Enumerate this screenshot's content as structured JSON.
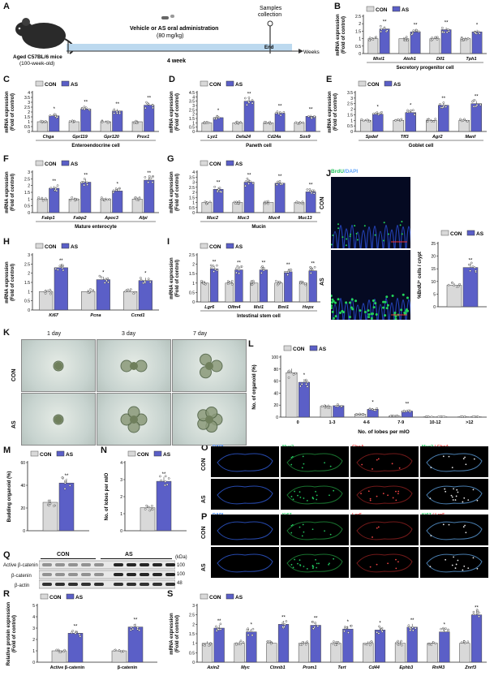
{
  "colors": {
    "con": "#d9d9d9",
    "as": "#5b5fc7",
    "axis": "#222",
    "timeline": "#bcd9ef"
  },
  "legend": {
    "con": "CON",
    "as": "AS"
  },
  "labels": {
    "A": "A",
    "B": "B",
    "C": "C",
    "D": "D",
    "E": "E",
    "F": "F",
    "G": "G",
    "H": "H",
    "I": "I",
    "J": "J",
    "K": "K",
    "L": "L",
    "M": "M",
    "N": "N",
    "O": "O",
    "P": "P",
    "Q": "Q",
    "R": "R",
    "S": "S"
  },
  "panelA": {
    "mouse": "Aged C57BL/6 mice",
    "mouse_age": "(100-week-old)",
    "admin": "Vehicle or AS oral administration",
    "dose": "(80 mg/kg)",
    "samples": "Samples",
    "collection": "collection",
    "end": "End",
    "weeks": "Weeks",
    "duration": "4 week"
  },
  "panelJ": {
    "stain": "BrdU",
    "dapi": "/DAPI",
    "con": "CON",
    "as": "AS",
    "ylabel": "%BrdU⁺ cells / crypt",
    "sig": "**"
  },
  "panelK": {
    "d1": "1 day",
    "d3": "3 day",
    "d7": "7 day",
    "con": "CON",
    "as": "AS"
  },
  "panelO": {
    "dapi": "DAPI",
    "muc2": "Muc2",
    "chga": "ChgA",
    "merge_a": "Muc2",
    "merge_b": " / ChgA",
    "con": "CON",
    "as": "AS"
  },
  "panelP": {
    "dapi": "DAPI",
    "ki67": "Ki67",
    "lgr5": "Lgr5",
    "merge_a": "Ki67",
    "merge_b": " / Lgr5",
    "con": "CON",
    "as": "AS"
  },
  "panelQ": {
    "con": "CON",
    "as": "AS",
    "kda": "(kDa)",
    "rows": [
      "Active β-catenin",
      "β-catenin",
      "β-actin"
    ],
    "mw": [
      "100",
      "100",
      "48"
    ]
  },
  "chart_data": [
    {
      "id": "B",
      "type": "bar",
      "ylabel": "mRNA expression\n(Fold of control)",
      "ylim": [
        0,
        2.5
      ],
      "ticks": [
        0,
        0.5,
        1,
        1.5,
        2,
        2.5
      ],
      "categories": [
        "Mist1",
        "Atoh1",
        "Dll1",
        "Tph1"
      ],
      "group": "Secretory progenitor cell",
      "series": [
        {
          "name": "CON",
          "values": [
            1,
            1,
            1,
            1
          ]
        },
        {
          "name": "AS",
          "values": [
            1.65,
            1.45,
            1.6,
            1.45
          ]
        }
      ],
      "sig": [
        "**",
        "**",
        "**",
        "*"
      ]
    },
    {
      "id": "C",
      "type": "bar",
      "ylabel": "mRNA expression\n(Fold of control)",
      "ylim": [
        0,
        4
      ],
      "ticks": [
        0,
        0.5,
        1,
        1.5,
        2,
        2.5,
        3,
        3.5,
        4
      ],
      "categories": [
        "Chga",
        "Gpr119",
        "Gpr120",
        "Prox1"
      ],
      "group": "Enteroendocrine cell",
      "series": [
        {
          "name": "CON",
          "values": [
            1,
            1,
            1,
            1
          ]
        },
        {
          "name": "AS",
          "values": [
            1.6,
            2.3,
            2.1,
            2.7
          ]
        }
      ],
      "sig": [
        "*",
        "**",
        "**",
        "**"
      ]
    },
    {
      "id": "D",
      "type": "bar",
      "ylabel": "mRNA expression\n(Fold of control)",
      "ylim": [
        0,
        4.5
      ],
      "ticks": [
        0,
        0.5,
        1,
        1.5,
        2,
        2.5,
        3,
        3.5,
        4,
        4.5
      ],
      "categories": [
        "Lyz1",
        "Defa24",
        "Cd24a",
        "Sox9"
      ],
      "group": "Paneth cell",
      "series": [
        {
          "name": "CON",
          "values": [
            1,
            1,
            1,
            1
          ]
        },
        {
          "name": "AS",
          "values": [
            1.6,
            3.5,
            2.1,
            1.75
          ]
        }
      ],
      "sig": [
        "*",
        "**",
        "**",
        "**"
      ]
    },
    {
      "id": "E",
      "type": "bar",
      "ylabel": "mRNA expression\n(Fold of control)",
      "ylim": [
        0,
        3.5
      ],
      "ticks": [
        0,
        0.5,
        1,
        1.5,
        2,
        2.5,
        3,
        3.5
      ],
      "categories": [
        "Spdef",
        "Tff3",
        "Agr2",
        "Manf"
      ],
      "group": "Goblet cell",
      "series": [
        {
          "name": "CON",
          "values": [
            1,
            1,
            1,
            1
          ]
        },
        {
          "name": "AS",
          "values": [
            1.55,
            1.7,
            2.35,
            2.5
          ]
        }
      ],
      "sig": [
        "*",
        "*",
        "**",
        "**"
      ]
    },
    {
      "id": "F",
      "type": "bar",
      "ylabel": "mRNA expression\n(Fold of control)",
      "ylim": [
        0,
        3
      ],
      "ticks": [
        0,
        0.5,
        1,
        1.5,
        2,
        2.5,
        3
      ],
      "categories": [
        "Fabp1",
        "Fabp2",
        "Apoc3",
        "Alpi"
      ],
      "group": "Mature enterocyte",
      "series": [
        {
          "name": "CON",
          "values": [
            1,
            1,
            1,
            1
          ]
        },
        {
          "name": "AS",
          "values": [
            1.8,
            2.25,
            1.6,
            2.4
          ]
        }
      ],
      "sig": [
        "**",
        "**",
        "*",
        "**"
      ]
    },
    {
      "id": "G",
      "type": "bar",
      "ylabel": "mRNA expression\n(Fold of control)",
      "ylim": [
        0,
        4
      ],
      "ticks": [
        0,
        0.5,
        1,
        1.5,
        2,
        2.5,
        3,
        3.5,
        4
      ],
      "categories": [
        "Muc2",
        "Muc3",
        "Muc4",
        "Muc13"
      ],
      "group": "Mucin",
      "series": [
        {
          "name": "CON",
          "values": [
            1,
            1,
            1,
            1
          ]
        },
        {
          "name": "AS",
          "values": [
            2.3,
            3.0,
            2.9,
            2.05
          ]
        }
      ],
      "sig": [
        "**",
        "**",
        "**",
        "**"
      ]
    },
    {
      "id": "H",
      "type": "bar",
      "ylabel": "mRNA expression\n(Fold of control)",
      "ylim": [
        0,
        3
      ],
      "ticks": [
        0,
        0.5,
        1,
        1.5,
        2,
        2.5,
        3
      ],
      "categories": [
        "Ki67",
        "Pcna",
        "Ccnd1"
      ],
      "group": "",
      "series": [
        {
          "name": "CON",
          "values": [
            1,
            1,
            1
          ]
        },
        {
          "name": "AS",
          "values": [
            2.3,
            1.65,
            1.6
          ]
        }
      ],
      "sig": [
        "**",
        "*",
        "*"
      ]
    },
    {
      "id": "I",
      "type": "bar",
      "ylabel": "mRNA expression\n(Fold of control)",
      "ylim": [
        0,
        2.5
      ],
      "ticks": [
        0,
        0.5,
        1,
        1.5,
        2,
        2.5
      ],
      "categories": [
        "Lgr6",
        "Olfm4",
        "Msi1",
        "Bmi1",
        "Hopx"
      ],
      "group": "Intestinal stem cell",
      "series": [
        {
          "name": "CON",
          "values": [
            1,
            1,
            1,
            1,
            1
          ]
        },
        {
          "name": "AS",
          "values": [
            1.75,
            1.7,
            1.7,
            1.6,
            1.65
          ]
        }
      ],
      "sig": [
        "**",
        "**",
        "**",
        "**",
        "**"
      ]
    },
    {
      "id": "J",
      "type": "bar",
      "ylabel": "%BrdU⁺ cells / crypt",
      "ylim": [
        0,
        25
      ],
      "ticks": [
        0,
        5,
        10,
        15,
        20,
        25
      ],
      "categories": [
        ""
      ],
      "group": "",
      "series": [
        {
          "name": "CON",
          "values": [
            8.5
          ]
        },
        {
          "name": "AS",
          "values": [
            15.5
          ]
        }
      ],
      "sig": [
        "**"
      ]
    },
    {
      "id": "L",
      "type": "bar",
      "ylabel": "No. of organoid (%)",
      "xlabel": "No. of lobes per mIO",
      "ylim": [
        0,
        100
      ],
      "ticks": [
        0,
        20,
        40,
        60,
        80,
        100
      ],
      "categories": [
        "0",
        "1-3",
        "4-6",
        "7-9",
        "10-12",
        ">12"
      ],
      "group": "",
      "series": [
        {
          "name": "CON",
          "values": [
            74,
            18,
            5,
            2,
            0.5,
            0.5
          ]
        },
        {
          "name": "AS",
          "values": [
            58,
            19,
            13,
            10,
            0.5,
            0.5
          ]
        }
      ],
      "sig": [
        "*",
        "",
        "*",
        "**",
        "",
        ""
      ]
    },
    {
      "id": "M",
      "type": "bar",
      "ylabel": "Budding organoid (%)",
      "ylim": [
        0,
        60
      ],
      "ticks": [
        0,
        20,
        40,
        60
      ],
      "categories": [
        ""
      ],
      "group": "",
      "series": [
        {
          "name": "CON",
          "values": [
            25
          ]
        },
        {
          "name": "AS",
          "values": [
            42
          ]
        }
      ],
      "sig": [
        "**"
      ]
    },
    {
      "id": "N",
      "type": "bar",
      "ylabel": "No. of lobes per mIO",
      "ylim": [
        0,
        4
      ],
      "ticks": [
        0,
        1,
        2,
        3,
        4
      ],
      "categories": [
        ""
      ],
      "group": "",
      "series": [
        {
          "name": "CON",
          "values": [
            1.35
          ]
        },
        {
          "name": "AS",
          "values": [
            2.9
          ]
        }
      ],
      "sig": [
        "**"
      ]
    },
    {
      "id": "R",
      "type": "bar",
      "ylabel": "Relative protein expression\n(Fold of control)",
      "ylim": [
        0,
        5
      ],
      "ticks": [
        0,
        1,
        2,
        3,
        4,
        5
      ],
      "categories": [
        "Active β-catenin",
        "β-catenin"
      ],
      "group": "",
      "series": [
        {
          "name": "CON",
          "values": [
            1,
            1
          ]
        },
        {
          "name": "AS",
          "values": [
            2.55,
            3.1
          ]
        }
      ],
      "sig": [
        "**",
        "**"
      ]
    },
    {
      "id": "S",
      "type": "bar",
      "ylabel": "mRNA expression\n(Fold of control)",
      "ylim": [
        0,
        3
      ],
      "ticks": [
        0,
        0.5,
        1,
        1.5,
        2,
        2.5,
        3
      ],
      "categories": [
        "Axin2",
        "Myc",
        "Ctnnb1",
        "Prom1",
        "Tert",
        "Cd44",
        "Ephb3",
        "Rnf43",
        "Znrf3"
      ],
      "group": "",
      "series": [
        {
          "name": "CON",
          "values": [
            1,
            1,
            1,
            1,
            1,
            1,
            1,
            1,
            1
          ]
        },
        {
          "name": "AS",
          "values": [
            1.8,
            1.6,
            2.0,
            1.95,
            1.75,
            1.7,
            1.85,
            1.6,
            2.5
          ]
        }
      ],
      "sig": [
        "**",
        "*",
        "**",
        "**",
        "*",
        "*",
        "**",
        "*",
        "**"
      ]
    }
  ]
}
